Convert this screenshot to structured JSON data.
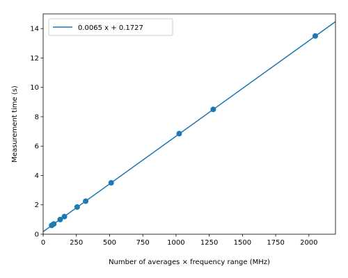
{
  "chart_data": {
    "type": "scatter",
    "title": "",
    "xlabel": "Number of averages × frequency range (MHz)",
    "ylabel": "Measurement time (s)",
    "xlim": [
      0,
      2200
    ],
    "ylim": [
      0,
      15
    ],
    "xticks": [
      0,
      250,
      500,
      750,
      1000,
      1250,
      1500,
      1750,
      2000
    ],
    "yticks": [
      0,
      2,
      4,
      6,
      8,
      10,
      12,
      14
    ],
    "xtick_labels": [
      "0",
      "250",
      "500",
      "750",
      "1000",
      "1250",
      "1500",
      "1750",
      "2000"
    ],
    "ytick_labels": [
      "0",
      "2",
      "4",
      "6",
      "8",
      "10",
      "12",
      "14"
    ],
    "grid": false,
    "legend_position": "top-left",
    "series": [
      {
        "name": "",
        "kind": "scatter",
        "color": "#1f77b4",
        "x": [
          64,
          80,
          128,
          160,
          256,
          320,
          512,
          1024,
          1280,
          2048
        ],
        "y": [
          0.6,
          0.7,
          1.0,
          1.2,
          1.85,
          2.25,
          3.5,
          6.85,
          8.5,
          13.5
        ]
      },
      {
        "name": "0.0065 x + 0.1727",
        "kind": "line",
        "color": "#1f77b4",
        "slope": 0.0065,
        "intercept": 0.1727,
        "x_range": [
          0,
          2200
        ]
      }
    ]
  }
}
